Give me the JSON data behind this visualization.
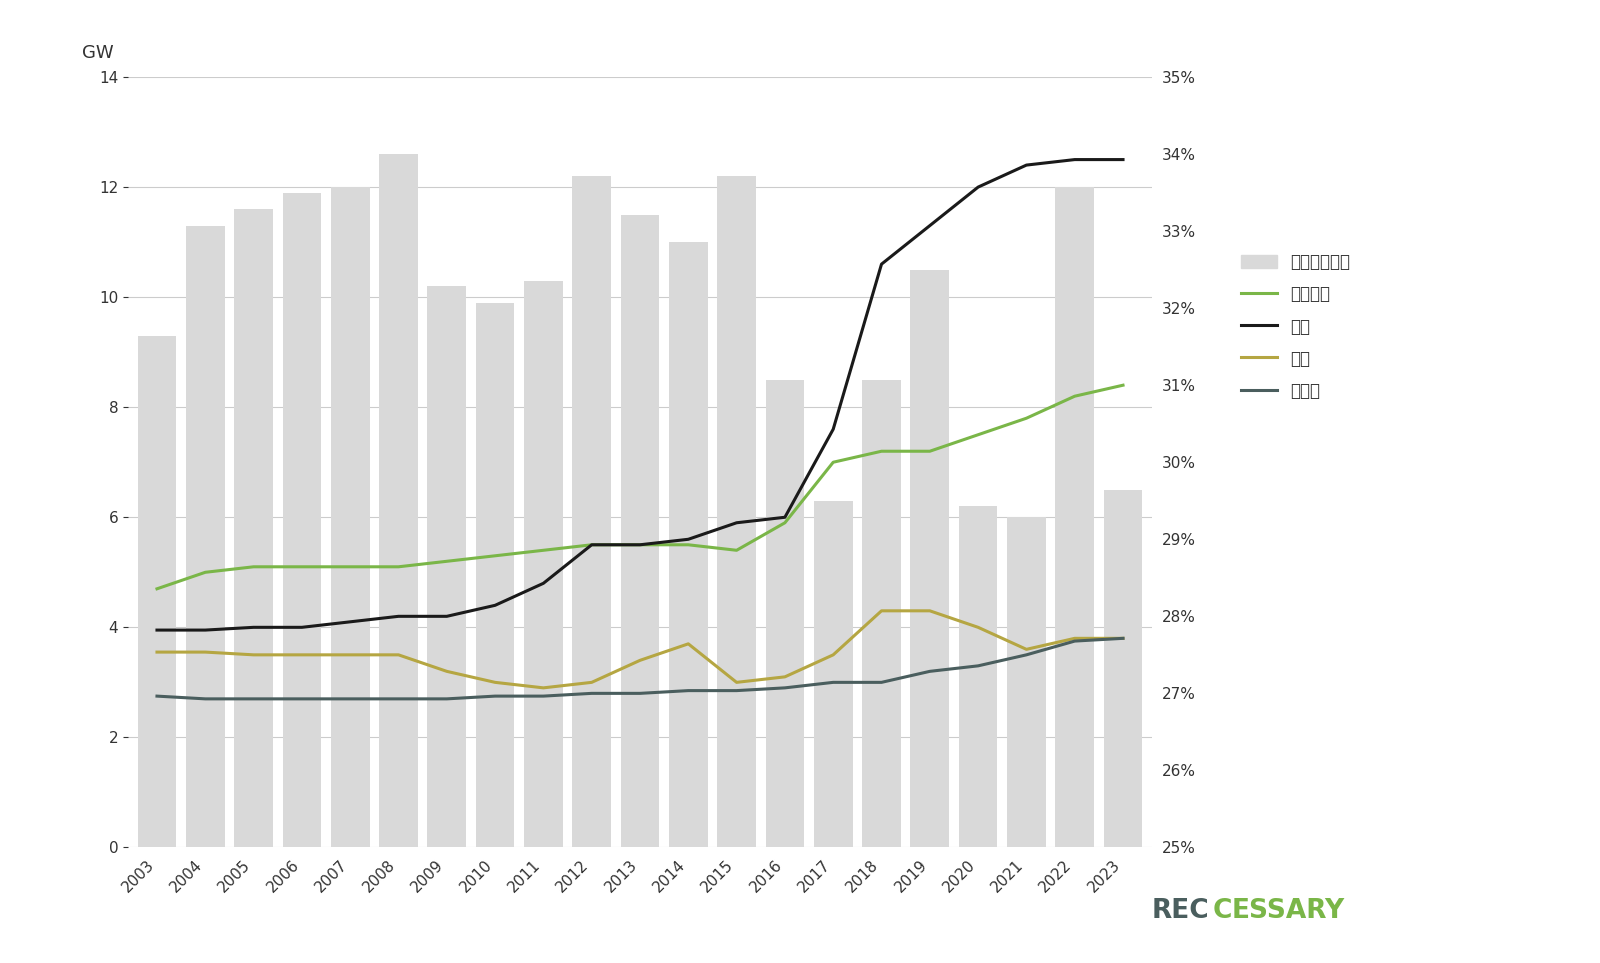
{
  "years": [
    2003,
    2004,
    2005,
    2006,
    2007,
    2008,
    2009,
    2010,
    2011,
    2012,
    2013,
    2014,
    2015,
    2016,
    2017,
    2018,
    2019,
    2020,
    2021,
    2022,
    2023
  ],
  "renewable": [
    4.7,
    5.0,
    5.1,
    5.1,
    5.1,
    5.1,
    5.2,
    5.3,
    5.4,
    5.5,
    5.5,
    5.5,
    5.4,
    5.9,
    7.0,
    7.2,
    7.2,
    7.5,
    7.8,
    8.2,
    8.4
  ],
  "coal": [
    3.95,
    3.95,
    4.0,
    4.0,
    4.1,
    4.2,
    4.2,
    4.4,
    4.8,
    5.5,
    5.5,
    5.6,
    5.9,
    6.0,
    7.6,
    10.6,
    11.3,
    12.0,
    12.4,
    12.5,
    12.5
  ],
  "oil": [
    3.55,
    3.55,
    3.5,
    3.5,
    3.5,
    3.5,
    3.2,
    3.0,
    2.9,
    3.0,
    3.4,
    3.7,
    3.0,
    3.1,
    3.5,
    4.3,
    4.3,
    4.0,
    3.6,
    3.8,
    3.8
  ],
  "gas": [
    2.75,
    2.7,
    2.7,
    2.7,
    2.7,
    2.7,
    2.7,
    2.75,
    2.75,
    2.8,
    2.8,
    2.85,
    2.85,
    2.9,
    3.0,
    3.0,
    3.2,
    3.3,
    3.5,
    3.75,
    3.8
  ],
  "re_share_bar": [
    9.3,
    11.3,
    11.6,
    11.9,
    12.0,
    12.6,
    10.2,
    9.9,
    10.3,
    12.2,
    11.5,
    11.0,
    12.2,
    8.5,
    6.3,
    8.5,
    10.5,
    6.2,
    6.0,
    12.0,
    6.5
  ],
  "bar_color": "#d9d9d9",
  "renewable_color": "#7ab648",
  "coal_color": "#1a1a1a",
  "oil_color": "#b5a642",
  "gas_color": "#4a5e5e",
  "ylabel_left": "GW",
  "ylim_left": [
    0,
    14
  ],
  "ylim_right": [
    0.25,
    0.35
  ],
  "yticks_left": [
    0,
    2,
    4,
    6,
    8,
    10,
    12,
    14
  ],
  "yticks_right": [
    0.25,
    0.26,
    0.27,
    0.28,
    0.29,
    0.3,
    0.31,
    0.32,
    0.33,
    0.34,
    0.35
  ],
  "legend_labels": [
    "再生能源估比",
    "再生能源",
    "煞炭",
    "石油",
    "天然氣"
  ],
  "background_color": "#ffffff",
  "line_width": 2.2,
  "logo_rec_color": "#4a5e5e",
  "logo_cessary_color": "#7ab648",
  "grid_color": "#cccccc"
}
